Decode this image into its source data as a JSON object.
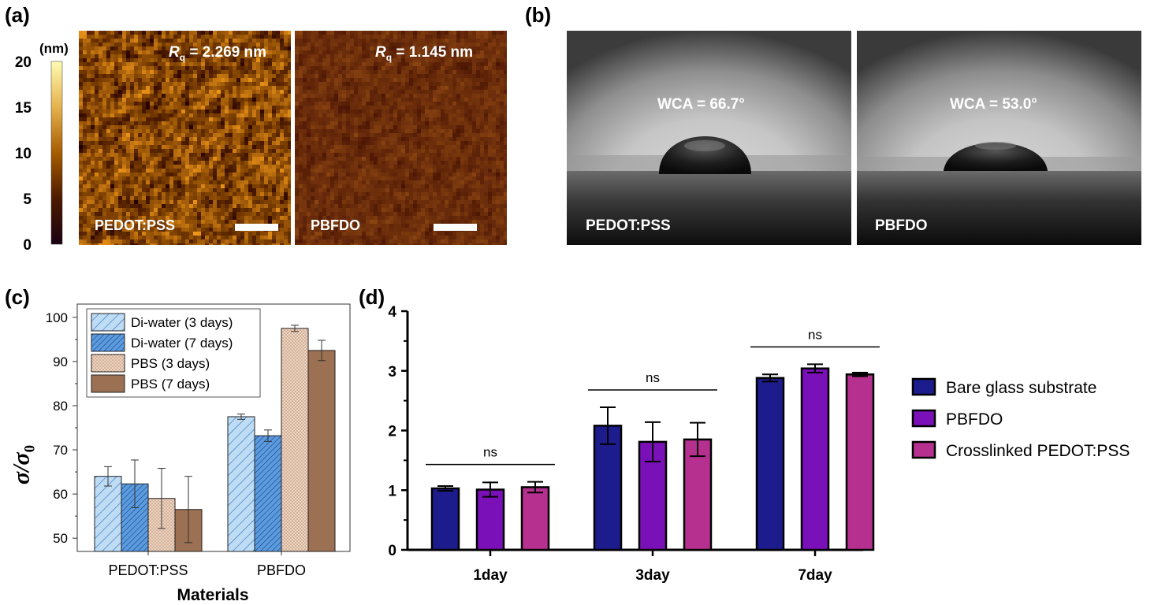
{
  "panels": {
    "a": {
      "letter": "(a)",
      "colorbar": {
        "unit": "(nm)",
        "ticks": [
          "0",
          "5",
          "10",
          "15",
          "20"
        ],
        "min": 0,
        "max": 20,
        "colors": [
          "#1a0011",
          "#4d1a00",
          "#a65c00",
          "#e6b24d",
          "#fffbb3"
        ]
      },
      "images": [
        {
          "label": "PEDOT:PSS",
          "rq_symbol": "R",
          "rq_sub": "q",
          "rq_value": "= 2.269 nm",
          "base_color": "#8a4a05",
          "variation": 95
        },
        {
          "label": "PBFDO",
          "rq_symbol": "R",
          "rq_sub": "q",
          "rq_value": "= 1.145 nm",
          "base_color": "#6b2d0b",
          "variation": 30
        }
      ]
    },
    "b": {
      "letter": "(b)",
      "images": [
        {
          "label": "PEDOT:PSS",
          "wca": "WCA = 66.7°"
        },
        {
          "label": "PBFDO",
          "wca": "WCA = 53.0°"
        }
      ]
    },
    "c": {
      "letter": "(c)",
      "ylabel_sigma": "σ",
      "ylabel_sub": "0",
      "xlabel": "Materials"
    },
    "d": {
      "letter": "(d)",
      "significance": "ns"
    }
  },
  "chart_data": [
    {
      "type": "bar",
      "panel": "c",
      "categories": [
        "PEDOT:PSS",
        "PBFDO"
      ],
      "xlabel": "Materials",
      "ylabel": "σ/σ0",
      "ylim": [
        47,
        103
      ],
      "yticks": [
        50,
        60,
        70,
        80,
        90,
        100
      ],
      "legend_position": "top-left",
      "series": [
        {
          "name": "Di-water (3 days)",
          "values": [
            64.0,
            77.5
          ],
          "errors": [
            2.2,
            0.6
          ],
          "color": "#bfdcf5",
          "pattern": "hatch-light"
        },
        {
          "name": "Di-water (7 days)",
          "values": [
            62.3,
            73.2
          ],
          "errors": [
            5.4,
            1.3
          ],
          "color": "#5b9be0",
          "pattern": "hatch-dense"
        },
        {
          "name": "PBS (3 days)",
          "values": [
            59.0,
            97.5
          ],
          "errors": [
            6.8,
            0.7
          ],
          "color": "#e8cbb5",
          "pattern": "dots"
        },
        {
          "name": "PBS (7 days)",
          "values": [
            56.5,
            92.5
          ],
          "errors": [
            7.5,
            2.3
          ],
          "color": "#9c7052",
          "pattern": "solid"
        }
      ]
    },
    {
      "type": "bar",
      "panel": "d",
      "categories": [
        "1day",
        "3day",
        "7day"
      ],
      "ylim": [
        0,
        4
      ],
      "yticks": [
        0,
        1,
        2,
        3,
        4
      ],
      "legend_position": "right",
      "series": [
        {
          "name": "Bare glass substrate",
          "values": [
            1.03,
            2.08,
            2.88
          ],
          "errors": [
            0.04,
            0.31,
            0.06
          ],
          "color": "#1c1c8c"
        },
        {
          "name": "PBFDO",
          "values": [
            1.01,
            1.81,
            3.04
          ],
          "errors": [
            0.12,
            0.33,
            0.07
          ],
          "color": "#7a10b8"
        },
        {
          "name": "Crosslinked PEDOT:PSS",
          "values": [
            1.05,
            1.85,
            2.94
          ],
          "errors": [
            0.09,
            0.28,
            0.03
          ],
          "color": "#b5308f"
        }
      ],
      "annotations": [
        "ns",
        "ns",
        "ns"
      ]
    }
  ]
}
